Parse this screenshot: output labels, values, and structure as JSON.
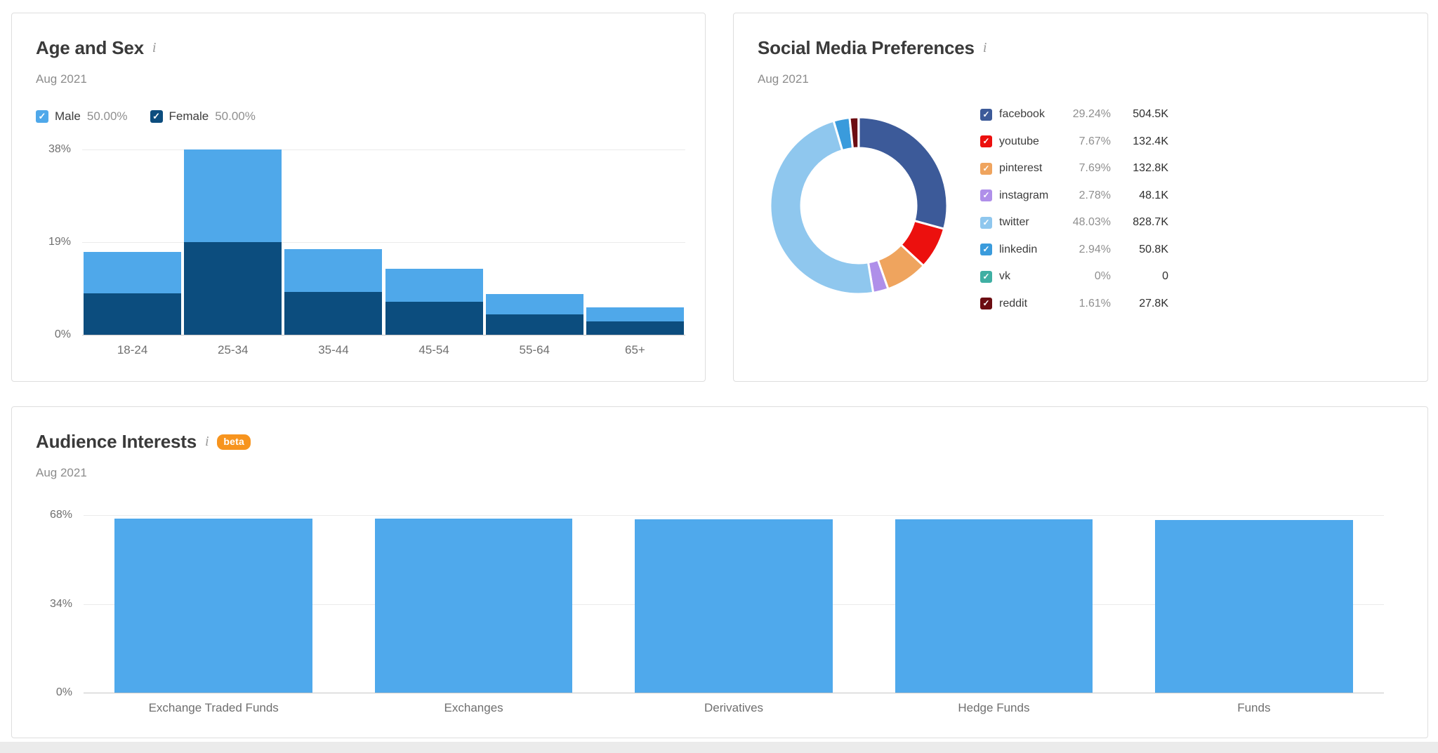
{
  "icons": {
    "info_glyph": "i",
    "checkbox_check_glyph": "✓"
  },
  "panels": {
    "age_sex": {
      "title": "Age and Sex",
      "period": "Aug 2021"
    },
    "social": {
      "title": "Social Media Preferences",
      "period": "Aug 2021"
    },
    "interests": {
      "title": "Audience Interests",
      "period": "Aug 2021",
      "badge": "beta"
    }
  },
  "chart_data": [
    {
      "id": "age-sex",
      "type": "bar",
      "stacked": true,
      "title": "Age and Sex",
      "subtitle": "Aug 2021",
      "categories": [
        "18-24",
        "25-34",
        "35-44",
        "45-54",
        "55-64",
        "65+"
      ],
      "series": [
        {
          "name": "Male",
          "legend_value": "50.00%",
          "checked": true,
          "color": "#4fa8ea",
          "values": [
            8.5,
            19,
            8.8,
            6.75,
            4.15,
            2.8
          ]
        },
        {
          "name": "Female",
          "legend_value": "50.00%",
          "checked": true,
          "color": "#0c4d7e",
          "values": [
            8.5,
            19,
            8.8,
            6.75,
            4.15,
            2.8
          ]
        }
      ],
      "totals": [
        17.0,
        38.0,
        17.6,
        13.5,
        8.3,
        5.6
      ],
      "ylim": [
        0,
        38
      ],
      "yticks": [
        "38%",
        "19%",
        "0%"
      ],
      "grid": true,
      "legend_position": "top"
    },
    {
      "id": "social-media",
      "type": "pie",
      "donut": true,
      "title": "Social Media Preferences",
      "subtitle": "Aug 2021",
      "start_angle_deg": -90,
      "legend_position": "right",
      "slices": [
        {
          "label": "facebook",
          "percent": "29.24%",
          "value": "504.5K",
          "p": 29.24,
          "checked": true,
          "color": "#3c5a99"
        },
        {
          "label": "youtube",
          "percent": "7.67%",
          "value": "132.4K",
          "p": 7.67,
          "checked": true,
          "color": "#ec100e"
        },
        {
          "label": "pinterest",
          "percent": "7.69%",
          "value": "132.8K",
          "p": 7.69,
          "checked": true,
          "color": "#efa45e"
        },
        {
          "label": "instagram",
          "percent": "2.78%",
          "value": "48.1K",
          "p": 2.78,
          "checked": true,
          "color": "#af8fe9"
        },
        {
          "label": "twitter",
          "percent": "48.03%",
          "value": "828.7K",
          "p": 48.03,
          "checked": true,
          "color": "#8fc7ee"
        },
        {
          "label": "linkedin",
          "percent": "2.94%",
          "value": "50.8K",
          "p": 2.94,
          "checked": true,
          "color": "#3a9bdc"
        },
        {
          "label": "vk",
          "percent": "0%",
          "value": "0",
          "p": 0,
          "checked": true,
          "color": "#3fafa3"
        },
        {
          "label": "reddit",
          "percent": "1.61%",
          "value": "27.8K",
          "p": 1.61,
          "checked": true,
          "color": "#6c0d12"
        }
      ]
    },
    {
      "id": "audience-interests",
      "type": "bar",
      "title": "Audience Interests",
      "subtitle": "Aug 2021",
      "categories": [
        "Exchange Traded Funds",
        "Exchanges",
        "Derivatives",
        "Hedge Funds",
        "Funds"
      ],
      "values": [
        66.6,
        66.6,
        66.3,
        66.3,
        66.0
      ],
      "color": "#4fa9ec",
      "ylim": [
        0,
        68
      ],
      "yticks": [
        "68%",
        "34%",
        "0%"
      ],
      "grid": true
    }
  ]
}
